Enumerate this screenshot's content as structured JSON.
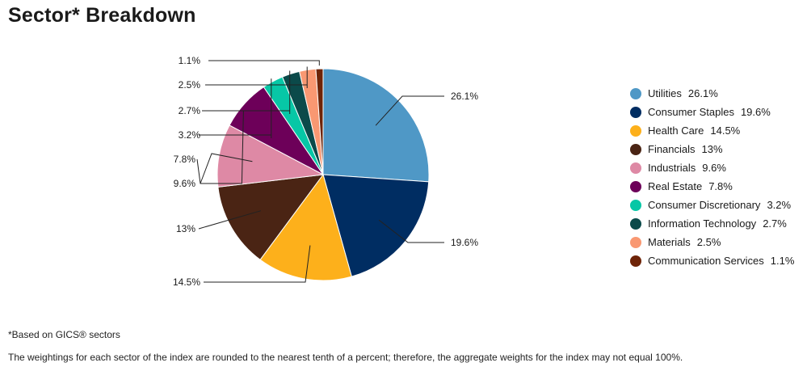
{
  "title": "Sector* Breakdown",
  "chart_data": {
    "type": "pie",
    "title": "Sector* Breakdown",
    "slices": [
      {
        "name": "Utilities",
        "value": 26.1,
        "label": "26.1%",
        "color": "#4F98C6"
      },
      {
        "name": "Consumer Staples",
        "value": 19.6,
        "label": "19.6%",
        "color": "#002D62"
      },
      {
        "name": "Health Care",
        "value": 14.5,
        "label": "14.5%",
        "color": "#FDB01B"
      },
      {
        "name": "Financials",
        "value": 13,
        "label": "13%",
        "color": "#4A2414"
      },
      {
        "name": "Industrials",
        "value": 9.6,
        "label": "9.6%",
        "color": "#DE89A5"
      },
      {
        "name": "Real Estate",
        "value": 7.8,
        "label": "7.8%",
        "color": "#6D0059"
      },
      {
        "name": "Consumer Discretionary",
        "value": 3.2,
        "label": "3.2%",
        "color": "#07C7A6"
      },
      {
        "name": "Information Technology",
        "value": 2.7,
        "label": "2.7%",
        "color": "#0B4A4A"
      },
      {
        "name": "Materials",
        "value": 2.5,
        "label": "2.5%",
        "color": "#F99872"
      },
      {
        "name": "Communication Services",
        "value": 1.1,
        "label": "1.1%",
        "color": "#6E2408"
      }
    ],
    "legend_position": "right"
  },
  "legend": [
    {
      "name": "Utilities",
      "value": "26.1%"
    },
    {
      "name": "Consumer Staples",
      "value": "19.6%"
    },
    {
      "name": "Health Care",
      "value": "14.5%"
    },
    {
      "name": "Financials",
      "value": "13%"
    },
    {
      "name": "Industrials",
      "value": "9.6%"
    },
    {
      "name": "Real Estate",
      "value": "7.8%"
    },
    {
      "name": "Consumer Discretionary",
      "value": "3.2%"
    },
    {
      "name": "Information Technology",
      "value": "2.7%"
    },
    {
      "name": "Materials",
      "value": "2.5%"
    },
    {
      "name": "Communication Services",
      "value": "1.1%"
    }
  ],
  "footnote": "*Based on GICS® sectors",
  "disclaimer": "The weightings for each sector of the index are rounded to the nearest tenth of a percent; therefore, the aggregate weights for the index may not equal 100%."
}
